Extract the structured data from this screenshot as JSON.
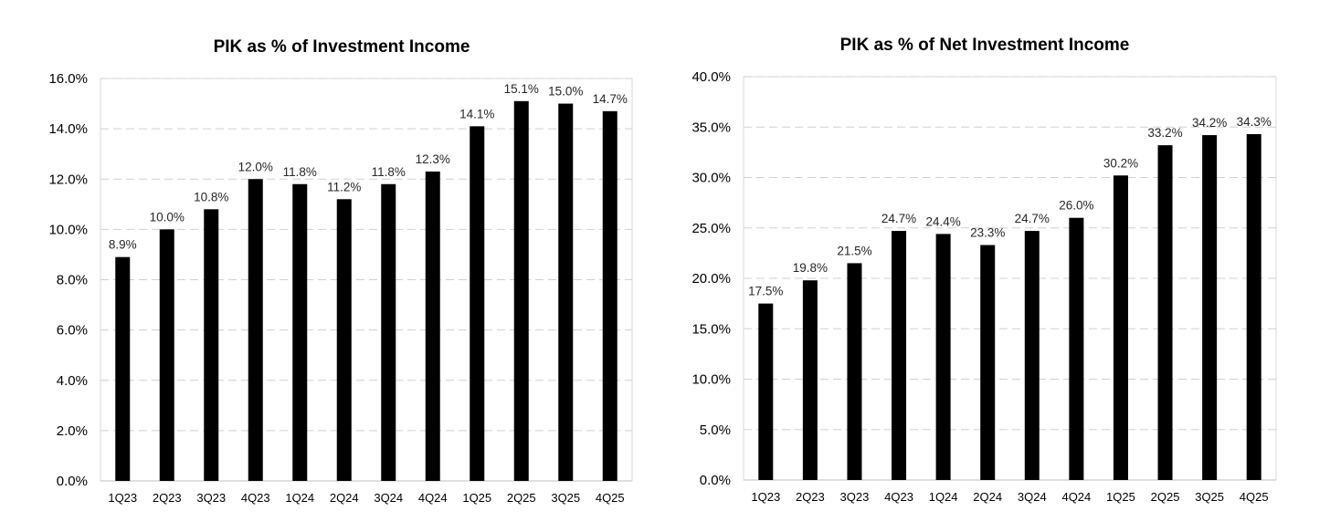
{
  "colors": {
    "bar": "#000000",
    "background": "#ffffff",
    "gridline": "#d0d0d0"
  },
  "chart_data": [
    {
      "type": "bar",
      "title": "PIK as % of Investment Income",
      "xlabel": "",
      "ylabel": "",
      "categories": [
        "1Q23",
        "2Q23",
        "3Q23",
        "4Q23",
        "1Q24",
        "2Q24",
        "3Q24",
        "4Q24",
        "1Q25",
        "2Q25",
        "3Q25",
        "4Q25"
      ],
      "values": [
        8.9,
        10.0,
        10.8,
        12.0,
        11.8,
        11.2,
        11.8,
        12.3,
        14.1,
        15.1,
        15.0,
        14.7
      ],
      "value_labels": [
        "8.9%",
        "10.0%",
        "10.8%",
        "12.0%",
        "11.8%",
        "11.2%",
        "11.8%",
        "12.3%",
        "14.1%",
        "15.1%",
        "15.0%",
        "14.7%"
      ],
      "ylim": [
        0,
        16
      ],
      "yticks": [
        0,
        2,
        4,
        6,
        8,
        10,
        12,
        14,
        16
      ],
      "ytick_labels": [
        "0.0%",
        "2.0%",
        "4.0%",
        "6.0%",
        "8.0%",
        "10.0%",
        "12.0%",
        "14.0%",
        "16.0%"
      ],
      "grid": true,
      "legend": "none"
    },
    {
      "type": "bar",
      "title": "PIK as % of Net Investment Income",
      "xlabel": "",
      "ylabel": "",
      "categories": [
        "1Q23",
        "2Q23",
        "3Q23",
        "4Q23",
        "1Q24",
        "2Q24",
        "3Q24",
        "4Q24",
        "1Q25",
        "2Q25",
        "3Q25",
        "4Q25"
      ],
      "values": [
        17.5,
        19.8,
        21.5,
        24.7,
        24.4,
        23.3,
        24.7,
        26.0,
        30.2,
        33.2,
        34.2,
        34.3
      ],
      "value_labels": [
        "17.5%",
        "19.8%",
        "21.5%",
        "24.7%",
        "24.4%",
        "23.3%",
        "24.7%",
        "26.0%",
        "30.2%",
        "33.2%",
        "34.2%",
        "34.3%"
      ],
      "ylim": [
        0,
        40
      ],
      "yticks": [
        0,
        5,
        10,
        15,
        20,
        25,
        30,
        35,
        40
      ],
      "ytick_labels": [
        "0.0%",
        "5.0%",
        "10.0%",
        "15.0%",
        "20.0%",
        "25.0%",
        "30.0%",
        "35.0%",
        "40.0%"
      ],
      "grid": true,
      "legend": "none"
    }
  ]
}
